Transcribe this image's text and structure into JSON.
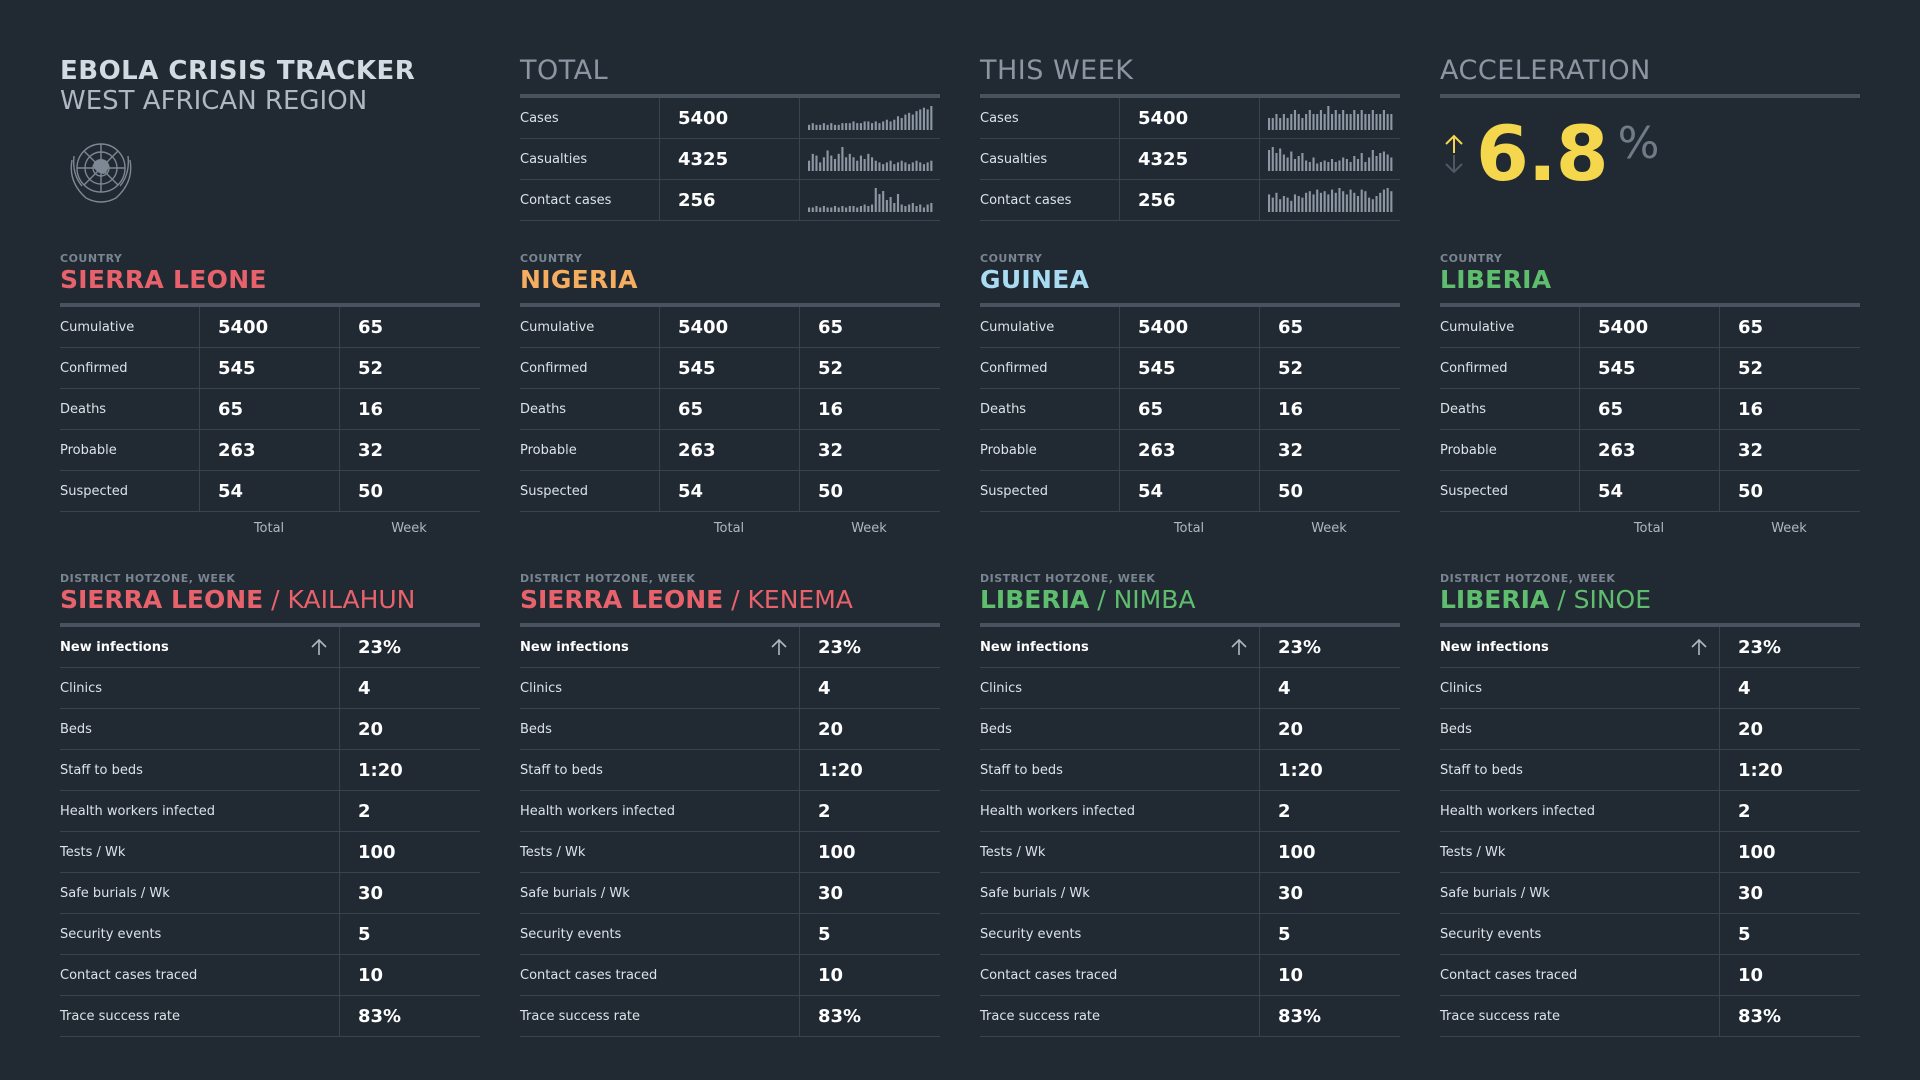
{
  "header": {
    "title": "EBOLA CRISIS TRACKER",
    "subtitle": "WEST AFRICAN REGION",
    "emblem_icon": "un-emblem-icon"
  },
  "colors": {
    "background": "#212a33",
    "sierra_leone": "#e8626c",
    "nigeria": "#f5ad5f",
    "guinea": "#a9dcf3",
    "liberia": "#5fbe6e",
    "acceleration": "#f5d74e",
    "sparkline": "#8c97a3"
  },
  "total": {
    "title": "TOTAL",
    "rows": [
      {
        "label": "Cases",
        "value": "5400",
        "spark": [
          3,
          4,
          3,
          3,
          4,
          3,
          4,
          3,
          3,
          4,
          4,
          4,
          5,
          4,
          4,
          5,
          5,
          4,
          5,
          4,
          5,
          6,
          5,
          6,
          8,
          7,
          9,
          10,
          9,
          11,
          12,
          13,
          12,
          14
        ]
      },
      {
        "label": "Casualties",
        "value": "4325",
        "spark": [
          6,
          10,
          9,
          5,
          8,
          12,
          9,
          7,
          10,
          14,
          8,
          10,
          8,
          6,
          9,
          7,
          10,
          8,
          6,
          5,
          4,
          5,
          6,
          4,
          5,
          6,
          5,
          4,
          5,
          6,
          5,
          4,
          5,
          6
        ]
      },
      {
        "label": "Contact cases",
        "value": "256",
        "spark": [
          3,
          3,
          4,
          3,
          4,
          3,
          3,
          4,
          3,
          4,
          3,
          4,
          4,
          3,
          4,
          5,
          4,
          5,
          16,
          12,
          14,
          8,
          10,
          6,
          12,
          5,
          4,
          5,
          6,
          4,
          5,
          3,
          5,
          6
        ]
      }
    ]
  },
  "this_week": {
    "title": "THIS WEEK",
    "rows": [
      {
        "label": "Cases",
        "value": "5400",
        "spark": [
          3,
          3,
          4,
          3,
          4,
          3,
          4,
          5,
          4,
          3,
          4,
          5,
          4,
          4,
          5,
          4,
          6,
          4,
          5,
          4,
          5,
          4,
          4,
          5,
          4,
          5,
          4,
          4,
          5,
          4,
          4,
          5,
          4,
          4
        ]
      },
      {
        "label": "Casualties",
        "value": "4325",
        "spark": [
          14,
          16,
          12,
          15,
          11,
          9,
          13,
          8,
          10,
          12,
          7,
          6,
          9,
          5,
          6,
          7,
          6,
          8,
          6,
          7,
          9,
          8,
          6,
          10,
          8,
          12,
          6,
          9,
          14,
          10,
          12,
          13,
          11,
          9
        ]
      },
      {
        "label": "Contact cases",
        "value": "256",
        "spark": [
          11,
          9,
          12,
          8,
          10,
          9,
          7,
          11,
          10,
          9,
          12,
          13,
          11,
          14,
          12,
          13,
          11,
          14,
          12,
          15,
          13,
          11,
          14,
          12,
          10,
          14,
          13,
          9,
          8,
          10,
          12,
          14,
          15,
          13
        ]
      }
    ]
  },
  "acceleration": {
    "title": "ACCELERATION",
    "value": "6.8",
    "unit": "%"
  },
  "countries": [
    {
      "caption": "COUNTRY",
      "name": "SIERRA LEONE",
      "rows": [
        {
          "label": "Cumulative",
          "total": "5400",
          "week": "65"
        },
        {
          "label": "Confirmed",
          "total": "545",
          "week": "52"
        },
        {
          "label": "Deaths",
          "total": "65",
          "week": "16"
        },
        {
          "label": "Probable",
          "total": "263",
          "week": "32"
        },
        {
          "label": "Suspected",
          "total": "54",
          "week": "50"
        }
      ],
      "foot_total": "Total",
      "foot_week": "Week"
    },
    {
      "caption": "COUNTRY",
      "name": "NIGERIA",
      "rows": [
        {
          "label": "Cumulative",
          "total": "5400",
          "week": "65"
        },
        {
          "label": "Confirmed",
          "total": "545",
          "week": "52"
        },
        {
          "label": "Deaths",
          "total": "65",
          "week": "16"
        },
        {
          "label": "Probable",
          "total": "263",
          "week": "32"
        },
        {
          "label": "Suspected",
          "total": "54",
          "week": "50"
        }
      ],
      "foot_total": "Total",
      "foot_week": "Week"
    },
    {
      "caption": "COUNTRY",
      "name": "GUINEA",
      "rows": [
        {
          "label": "Cumulative",
          "total": "5400",
          "week": "65"
        },
        {
          "label": "Confirmed",
          "total": "545",
          "week": "52"
        },
        {
          "label": "Deaths",
          "total": "65",
          "week": "16"
        },
        {
          "label": "Probable",
          "total": "263",
          "week": "32"
        },
        {
          "label": "Suspected",
          "total": "54",
          "week": "50"
        }
      ],
      "foot_total": "Total",
      "foot_week": "Week"
    },
    {
      "caption": "COUNTRY",
      "name": "LIBERIA",
      "rows": [
        {
          "label": "Cumulative",
          "total": "5400",
          "week": "65"
        },
        {
          "label": "Confirmed",
          "total": "545",
          "week": "52"
        },
        {
          "label": "Deaths",
          "total": "65",
          "week": "16"
        },
        {
          "label": "Probable",
          "total": "263",
          "week": "32"
        },
        {
          "label": "Suspected",
          "total": "54",
          "week": "50"
        }
      ],
      "foot_total": "Total",
      "foot_week": "Week"
    }
  ],
  "districts": [
    {
      "caption": "DISTRICT HOTZONE, WEEK",
      "country": "SIERRA LEONE",
      "separator": " / ",
      "district": "KAILAHUN",
      "rows": [
        {
          "label": "New infections",
          "value": "23%"
        },
        {
          "label": "Clinics",
          "value": "4"
        },
        {
          "label": "Beds",
          "value": "20"
        },
        {
          "label": "Staff to beds",
          "value": "1:20"
        },
        {
          "label": "Health workers infected",
          "value": "2"
        },
        {
          "label": "Tests / Wk",
          "value": "100"
        },
        {
          "label": "Safe burials / Wk",
          "value": "30"
        },
        {
          "label": "Security events",
          "value": "5"
        },
        {
          "label": "Contact cases traced",
          "value": "10"
        },
        {
          "label": "Trace success rate",
          "value": "83%"
        }
      ]
    },
    {
      "caption": "DISTRICT HOTZONE, WEEK",
      "country": "SIERRA LEONE",
      "separator": " / ",
      "district": "KENEMA",
      "rows": [
        {
          "label": "New infections",
          "value": "23%"
        },
        {
          "label": "Clinics",
          "value": "4"
        },
        {
          "label": "Beds",
          "value": "20"
        },
        {
          "label": "Staff to beds",
          "value": "1:20"
        },
        {
          "label": "Health workers infected",
          "value": "2"
        },
        {
          "label": "Tests / Wk",
          "value": "100"
        },
        {
          "label": "Safe burials / Wk",
          "value": "30"
        },
        {
          "label": "Security events",
          "value": "5"
        },
        {
          "label": "Contact cases traced",
          "value": "10"
        },
        {
          "label": "Trace success rate",
          "value": "83%"
        }
      ]
    },
    {
      "caption": "DISTRICT HOTZONE, WEEK",
      "country": "LIBERIA",
      "separator": " / ",
      "district": "NIMBA",
      "rows": [
        {
          "label": "New infections",
          "value": "23%"
        },
        {
          "label": "Clinics",
          "value": "4"
        },
        {
          "label": "Beds",
          "value": "20"
        },
        {
          "label": "Staff to beds",
          "value": "1:20"
        },
        {
          "label": "Health workers infected",
          "value": "2"
        },
        {
          "label": "Tests / Wk",
          "value": "100"
        },
        {
          "label": "Safe burials / Wk",
          "value": "30"
        },
        {
          "label": "Security events",
          "value": "5"
        },
        {
          "label": "Contact cases traced",
          "value": "10"
        },
        {
          "label": "Trace success rate",
          "value": "83%"
        }
      ]
    },
    {
      "caption": "DISTRICT HOTZONE, WEEK",
      "country": "LIBERIA",
      "separator": " / ",
      "district": "SINOE",
      "rows": [
        {
          "label": "New infections",
          "value": "23%"
        },
        {
          "label": "Clinics",
          "value": "4"
        },
        {
          "label": "Beds",
          "value": "20"
        },
        {
          "label": "Staff to beds",
          "value": "1:20"
        },
        {
          "label": "Health workers infected",
          "value": "2"
        },
        {
          "label": "Tests / Wk",
          "value": "100"
        },
        {
          "label": "Safe burials / Wk",
          "value": "30"
        },
        {
          "label": "Security events",
          "value": "5"
        },
        {
          "label": "Contact cases traced",
          "value": "10"
        },
        {
          "label": "Trace success rate",
          "value": "83%"
        }
      ]
    }
  ]
}
